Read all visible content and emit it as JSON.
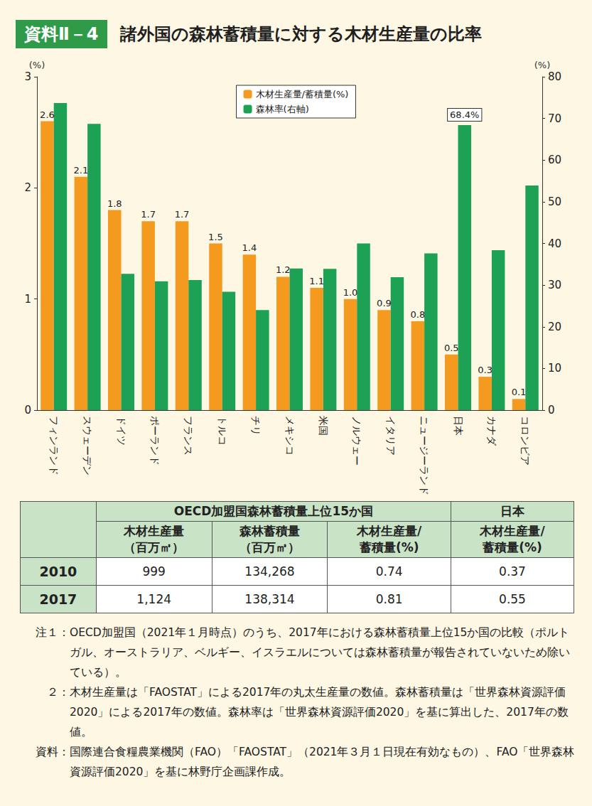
{
  "header": {
    "label": "資料Ⅱ－4"
  },
  "chart_data": {
    "type": "bar",
    "title": "諸外国の森林蓄積量に対する木材生産量の比率",
    "categories": [
      "フィンランド",
      "スウェーデン",
      "ドイツ",
      "ポーランド",
      "フランス",
      "トルコ",
      "チリ",
      "メキシコ",
      "米国",
      "ノルウェー",
      "イタリア",
      "ニュージーランド",
      "日本",
      "カナダ",
      "コロンビア"
    ],
    "series": [
      {
        "name": "木材生産量/蓄積量(%)",
        "color": "#f39a1f",
        "values": [
          2.6,
          2.1,
          1.8,
          1.7,
          1.7,
          1.5,
          1.4,
          1.2,
          1.1,
          1.0,
          0.9,
          0.8,
          0.5,
          0.3,
          0.1
        ],
        "value_labels": [
          "2.6",
          "2.1",
          "1.8",
          "1.7",
          "1.7",
          "1.5",
          "1.4",
          "1.2",
          "1.1",
          "1.0",
          "0.9",
          "0.8",
          "0.5",
          "0.3",
          "0.1"
        ],
        "data_labels": true
      },
      {
        "name": "森林率(右軸)",
        "color": "#1da155",
        "axis": "y2",
        "values": [
          73.7,
          68.7,
          32.7,
          30.9,
          31.2,
          28.4,
          24.0,
          34.0,
          33.9,
          40.0,
          31.9,
          37.6,
          68.4,
          38.4,
          53.9
        ],
        "data_labels": false
      }
    ],
    "ylabel": "(%)",
    "y2label": "(%)",
    "ylim": [
      0,
      3
    ],
    "yticks": [
      0,
      1,
      2,
      3
    ],
    "y2lim": [
      0,
      80
    ],
    "y2ticks": [
      0,
      10,
      20,
      30,
      40,
      50,
      60,
      70,
      80
    ],
    "annotations": [
      {
        "text": "68.4%",
        "category": "日本",
        "value": 68.4
      }
    ],
    "grid": false,
    "legend": "top"
  },
  "table": {
    "groups": [
      {
        "title": "OECD加盟国森林蓄積量上位15か国",
        "columns": [
          "木材生産量\n（百万㎥）",
          "森林蓄積量\n（百万㎥）",
          "木材生産量/\n蓄積量(%)"
        ]
      },
      {
        "title": "日本",
        "columns": [
          "木材生産量/\n蓄積量(%)"
        ]
      }
    ],
    "rows": [
      {
        "label": "2010",
        "cells": [
          "999",
          "134,268",
          "0.74",
          "0.37"
        ]
      },
      {
        "label": "2017",
        "cells": [
          "1,124",
          "138,314",
          "0.81",
          "0.55"
        ]
      }
    ]
  },
  "notes": [
    {
      "label": "注１：",
      "text": "OECD加盟国（2021年１月時点）のうち、2017年における森林蓄積量上位15か国の比較（ポルトガル、オーストラリア、ベルギー、イスラエルについては森林蓄積量が報告されていないため除いている）。"
    },
    {
      "label": "２：",
      "text": "木材生産量は「FAOSTAT」による2017年の丸太生産量の数値。森林蓄積量は「世界森林資源評価2020」による2017年の数値。森林率は「世界森林資源評価2020」を基に算出した、2017年の数値。"
    },
    {
      "label": "資料：",
      "text": "国際連合食糧農業機関（FAO）「FAOSTAT」（2021年３月１日現在有効なもの）、FAO「世界森林資源評価2020」を基に林野庁企画課作成。"
    }
  ]
}
